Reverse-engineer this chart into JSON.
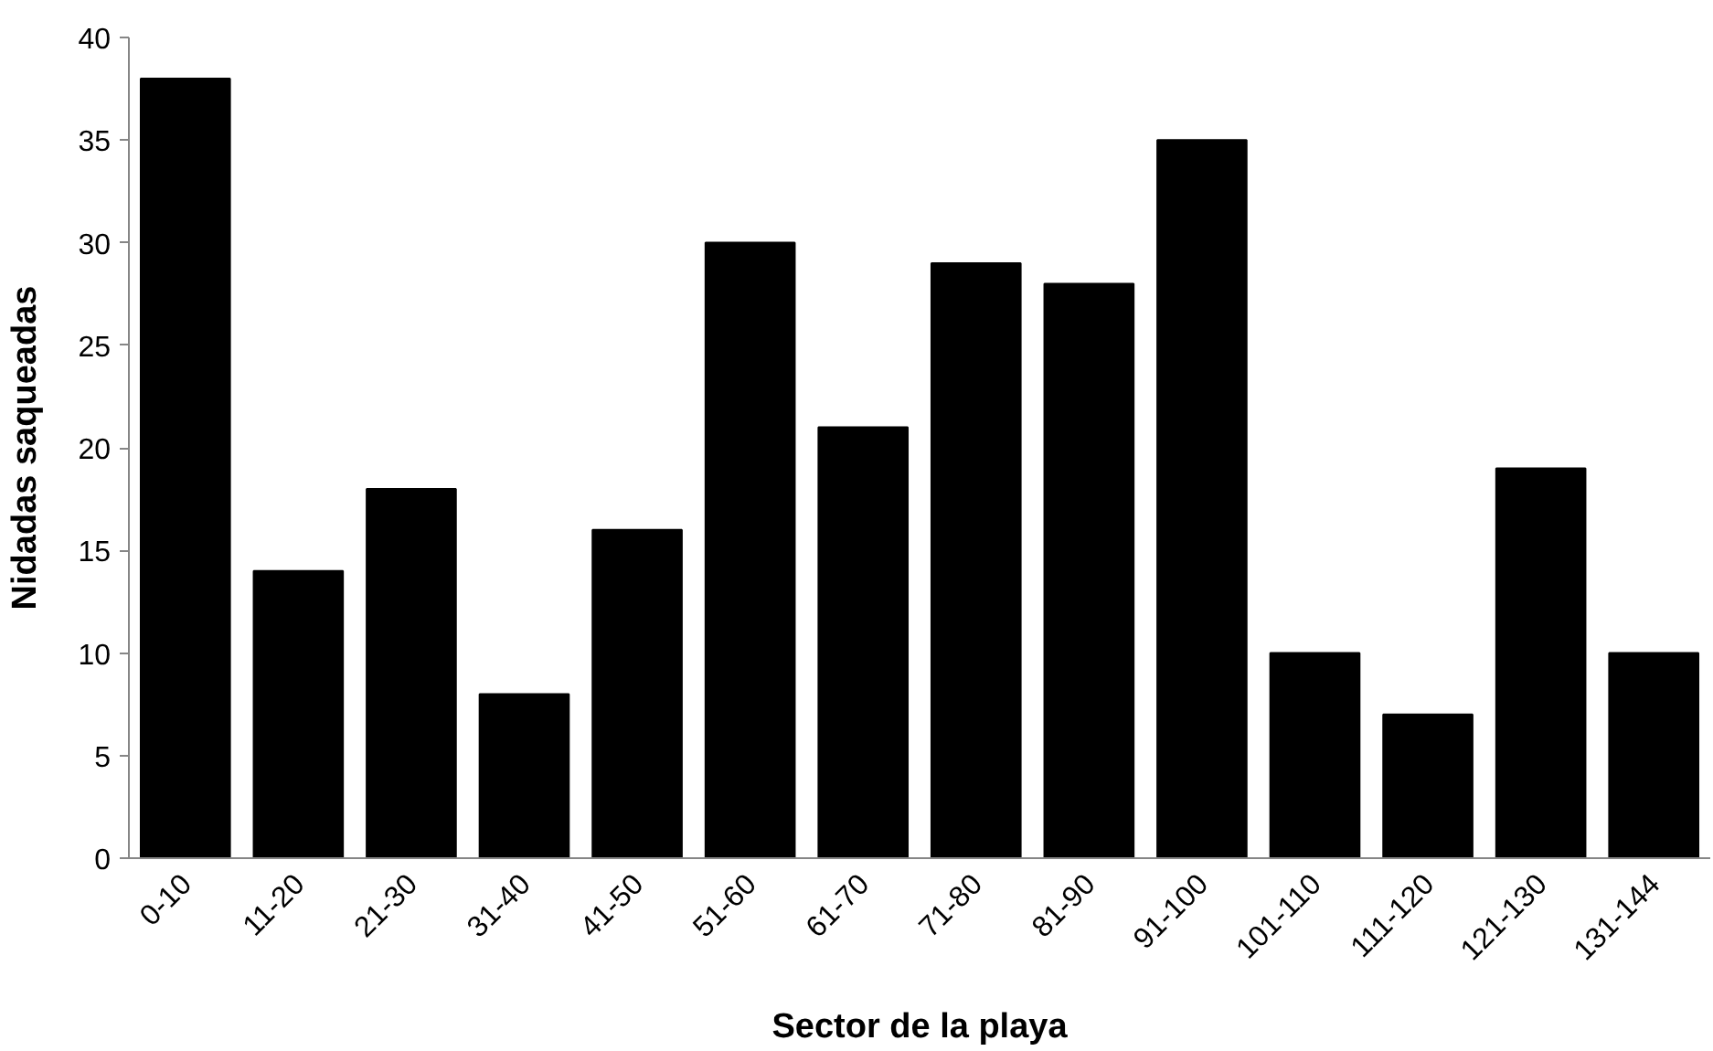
{
  "chart_data": {
    "type": "bar",
    "xlabel": "Sector de la playa",
    "ylabel": "Nidadas saqueadas",
    "categories": [
      "0-10",
      "11-20",
      "21-30",
      "31-40",
      "41-50",
      "51-60",
      "61-70",
      "71-80",
      "81-90",
      "91-100",
      "101-110",
      "111-120",
      "121-130",
      "131-144"
    ],
    "values": [
      38,
      14,
      18,
      8,
      16,
      30,
      21,
      29,
      28,
      35,
      10,
      7,
      19,
      10
    ],
    "color": "#000000",
    "ylim": [
      0,
      40
    ],
    "yticks": [
      0,
      5,
      10,
      15,
      20,
      25,
      30,
      35,
      40
    ],
    "grid": false
  }
}
